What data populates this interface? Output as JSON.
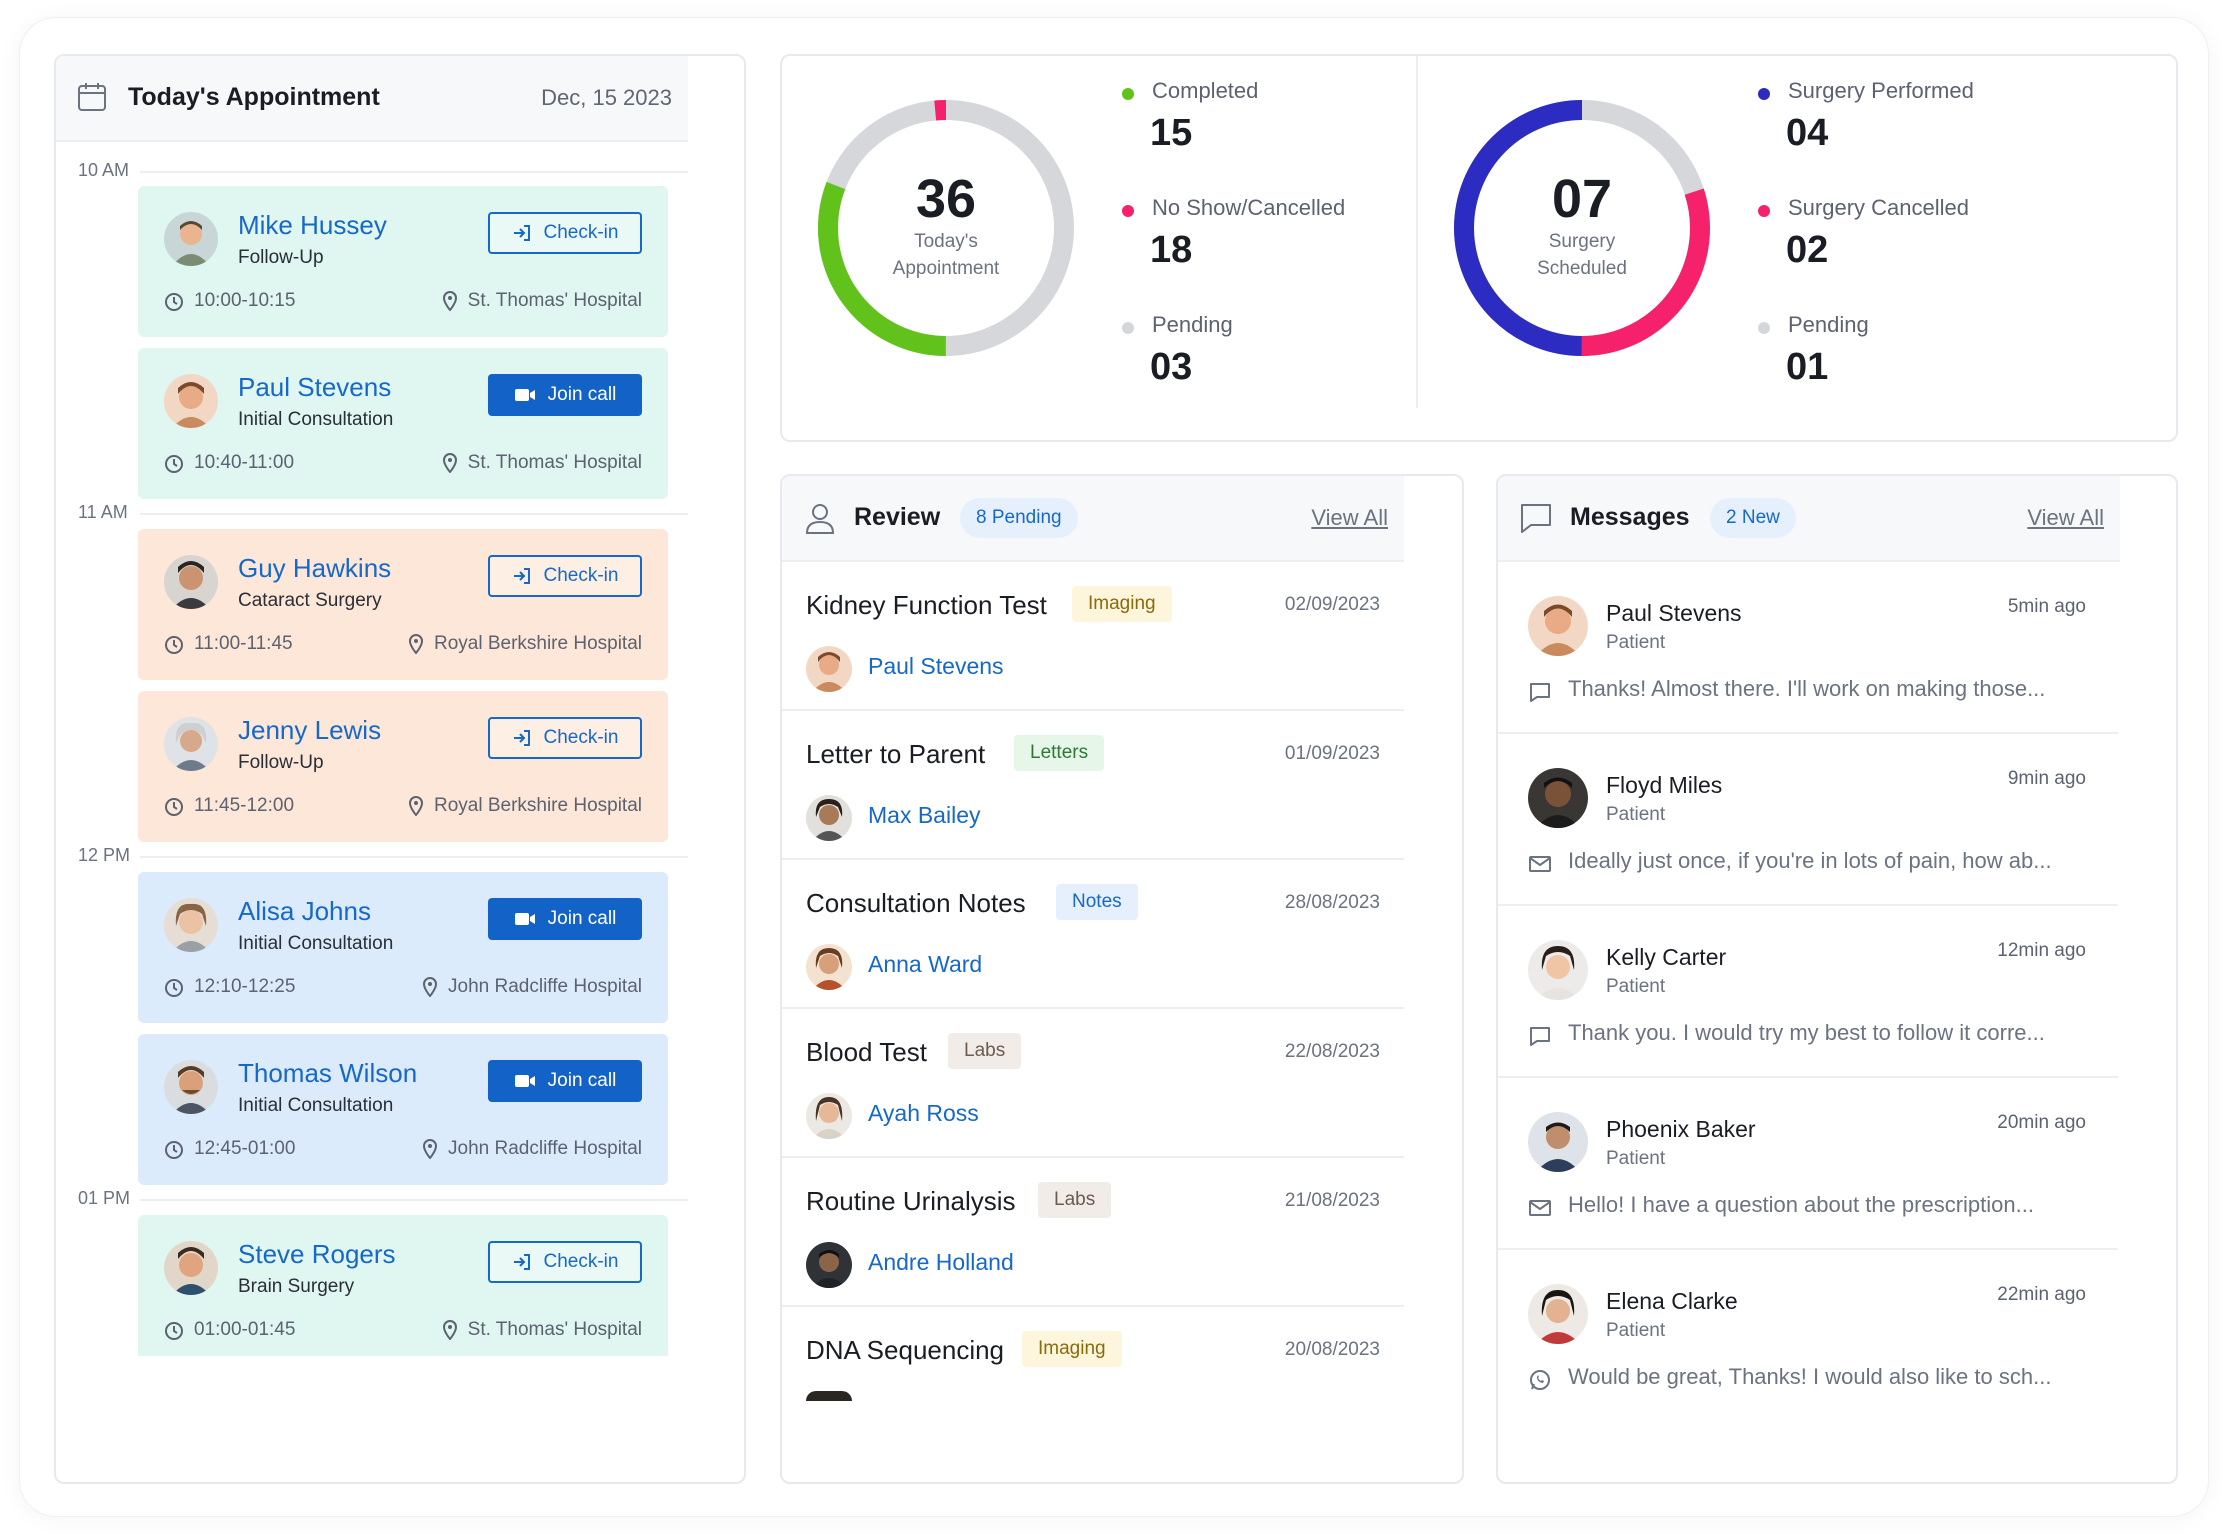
{
  "appointments": {
    "title": "Today's Appointment",
    "date": "Dec, 15 2023",
    "time_labels": [
      "10 AM",
      "11 AM",
      "12 PM",
      "01 PM"
    ],
    "items": [
      {
        "name": "Mike Hussey",
        "type": "Follow-Up",
        "time": "10:00-10:15",
        "location": "St. Thomas' Hospital",
        "action": "Check-in"
      },
      {
        "name": "Paul Stevens",
        "type": "Initial Consultation",
        "time": "10:40-11:00",
        "location": "St. Thomas' Hospital",
        "action": "Join call"
      },
      {
        "name": "Guy Hawkins",
        "type": "Cataract Surgery",
        "time": "11:00-11:45",
        "location": "Royal Berkshire Hospital",
        "action": "Check-in"
      },
      {
        "name": "Jenny Lewis",
        "type": "Follow-Up",
        "time": "11:45-12:00",
        "location": "Royal Berkshire Hospital",
        "action": "Check-in"
      },
      {
        "name": "Alisa Johns",
        "type": "Initial Consultation",
        "time": "12:10-12:25",
        "location": "John Radcliffe Hospital",
        "action": "Join call"
      },
      {
        "name": "Thomas Wilson",
        "type": "Initial Consultation",
        "time": "12:45-01:00",
        "location": "John Radcliffe Hospital",
        "action": "Join call"
      },
      {
        "name": "Steve Rogers",
        "type": "Brain Surgery",
        "time": "01:00-01:45",
        "location": "St. Thomas' Hospital",
        "action": "Check-in"
      }
    ]
  },
  "stats": {
    "appointments": {
      "total": "36",
      "label_line1": "Today's",
      "label_line2": "Appointment",
      "legend": [
        {
          "label": "Completed",
          "value": "15",
          "color": "#62c21c"
        },
        {
          "label": "No Show/Cancelled",
          "value": "18",
          "color": "#f5226b"
        },
        {
          "label": "Pending",
          "value": "03",
          "color": "#d4d6da"
        }
      ]
    },
    "surgery": {
      "total": "07",
      "label_line1": "Surgery",
      "label_line2": "Scheduled",
      "legend": [
        {
          "label": "Surgery Performed",
          "value": "04",
          "color": "#2c2bc2"
        },
        {
          "label": "Surgery Cancelled",
          "value": "02",
          "color": "#f5226b"
        },
        {
          "label": "Pending",
          "value": "01",
          "color": "#d4d6da"
        }
      ]
    }
  },
  "review": {
    "title": "Review",
    "pending_badge": "8 Pending",
    "view_all": "View All",
    "items": [
      {
        "title": "Kidney Function Test",
        "tag": "Imaging",
        "date": "02/09/2023",
        "patient": "Paul Stevens"
      },
      {
        "title": "Letter to Parent",
        "tag": "Letters",
        "date": "01/09/2023",
        "patient": "Max Bailey"
      },
      {
        "title": "Consultation Notes",
        "tag": "Notes",
        "date": "28/08/2023",
        "patient": "Anna Ward"
      },
      {
        "title": "Blood Test",
        "tag": "Labs",
        "date": "22/08/2023",
        "patient": "Ayah Ross"
      },
      {
        "title": "Routine Urinalysis",
        "tag": "Labs",
        "date": "21/08/2023",
        "patient": "Andre Holland"
      },
      {
        "title": "DNA Sequencing",
        "tag": "Imaging",
        "date": "20/08/2023",
        "patient": ""
      }
    ]
  },
  "messages": {
    "title": "Messages",
    "new_badge": "2 New",
    "view_all": "View All",
    "items": [
      {
        "name": "Paul Stevens",
        "role": "Patient",
        "time": "5min ago",
        "text": "Thanks! Almost there. I'll work on making those...",
        "channel": "chat"
      },
      {
        "name": "Floyd Miles",
        "role": "Patient",
        "time": "9min ago",
        "text": "Ideally just once, if you're in lots of pain, how ab...",
        "channel": "email"
      },
      {
        "name": "Kelly Carter",
        "role": "Patient",
        "time": "12min ago",
        "text": "Thank you. I would try my best to follow it corre...",
        "channel": "chat"
      },
      {
        "name": "Phoenix Baker",
        "role": "Patient",
        "time": "20min ago",
        "text": "Hello! I have a question about the prescription...",
        "channel": "email"
      },
      {
        "name": "Elena Clarke",
        "role": "Patient",
        "time": "22min ago",
        "text": "Would be great, Thanks! I would also like to sch...",
        "channel": "whatsapp"
      }
    ]
  }
}
